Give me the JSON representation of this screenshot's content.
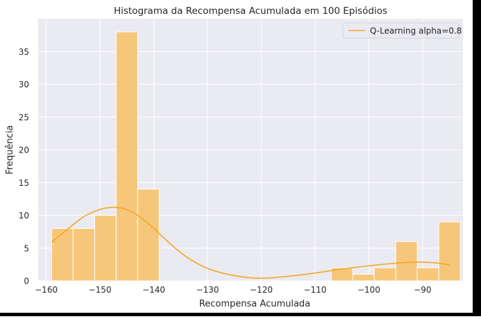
{
  "chart_data": {
    "type": "bar",
    "title": "Histograma da Recompensa Acumulada em 100 Episódios",
    "xlabel": "Recompensa Acumulada",
    "ylabel": "Frequência",
    "xlim": [
      -161.5,
      -82.5
    ],
    "ylim": [
      0,
      40
    ],
    "xticks": [
      -160,
      -150,
      -140,
      -130,
      -120,
      -110,
      -100,
      -90
    ],
    "xtick_labels": [
      "−160",
      "−150",
      "−140",
      "−130",
      "−120",
      "−110",
      "−100",
      "−90"
    ],
    "yticks": [
      0,
      5,
      10,
      15,
      20,
      25,
      30,
      35
    ],
    "ytick_labels": [
      "0",
      "5",
      "10",
      "15",
      "20",
      "25",
      "30",
      "35"
    ],
    "grid": true,
    "legend_position": "upper right",
    "series": [
      {
        "name": "Q-Learning alpha=0.8",
        "color": "#f5a623",
        "bins": [
          {
            "x0": -159.0,
            "x1": -155.0,
            "count": 8
          },
          {
            "x0": -155.0,
            "x1": -151.0,
            "count": 8
          },
          {
            "x0": -151.0,
            "x1": -147.0,
            "count": 10
          },
          {
            "x0": -147.0,
            "x1": -143.0,
            "count": 38
          },
          {
            "x0": -143.0,
            "x1": -139.0,
            "count": 14
          },
          {
            "x0": -107.0,
            "x1": -103.0,
            "count": 2
          },
          {
            "x0": -103.0,
            "x1": -99.0,
            "count": 1
          },
          {
            "x0": -99.0,
            "x1": -95.0,
            "count": 2
          },
          {
            "x0": -95.0,
            "x1": -91.0,
            "count": 6
          },
          {
            "x0": -91.0,
            "x1": -87.0,
            "count": 2
          },
          {
            "x0": -87.0,
            "x1": -83.0,
            "count": 9
          }
        ],
        "kde": {
          "x": [
            -159,
            -156,
            -153,
            -150,
            -148,
            -146,
            -144,
            -142,
            -140,
            -137,
            -134,
            -130,
            -125,
            -120,
            -115,
            -110,
            -105,
            -100,
            -95,
            -92,
            -90,
            -87,
            -85
          ],
          "y": [
            5.9,
            7.9,
            9.8,
            10.9,
            11.2,
            11.1,
            10.5,
            9.4,
            8.0,
            5.7,
            3.7,
            1.9,
            0.8,
            0.4,
            0.7,
            1.2,
            1.8,
            2.3,
            2.7,
            2.85,
            2.85,
            2.7,
            2.4
          ]
        }
      }
    ]
  },
  "colors": {
    "plot_background": "#eaeaf2",
    "grid": "#ffffff",
    "bar_fill": "#f6c77a",
    "bar_edge": "#ffffff",
    "kde_line": "#f5a623"
  }
}
